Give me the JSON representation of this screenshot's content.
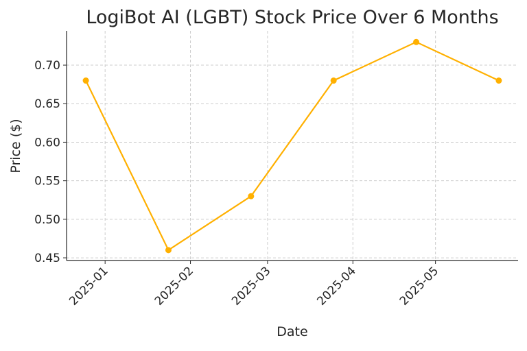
{
  "chart_data": {
    "type": "line",
    "title": "LogiBot AI (LGBT) Stock Price Over 6 Months",
    "xlabel": "Date",
    "ylabel": "Price ($)",
    "x": [
      "2024-12-25",
      "2025-01-24",
      "2025-02-23",
      "2025-03-25",
      "2025-04-24",
      "2025-05-24"
    ],
    "series": [
      {
        "values": [
          0.68,
          0.46,
          0.53,
          0.68,
          0.73,
          0.68
        ],
        "color": "#FFB000",
        "marker": "circle"
      }
    ],
    "xlim": [
      "2024-12-18",
      "2025-05-31"
    ],
    "ylim": [
      0.4465,
      0.7445
    ],
    "xticks": [
      "2025-01",
      "2025-02",
      "2025-03",
      "2025-04",
      "2025-05"
    ],
    "xtick_dates": [
      "2025-01-01",
      "2025-02-01",
      "2025-03-01",
      "2025-04-01",
      "2025-05-01"
    ],
    "yticks": [
      0.45,
      0.5,
      0.55,
      0.6,
      0.65,
      0.7
    ],
    "ytick_labels": [
      "0.45",
      "0.50",
      "0.55",
      "0.60",
      "0.65",
      "0.70"
    ],
    "grid": true,
    "grid_style": "dashed"
  }
}
